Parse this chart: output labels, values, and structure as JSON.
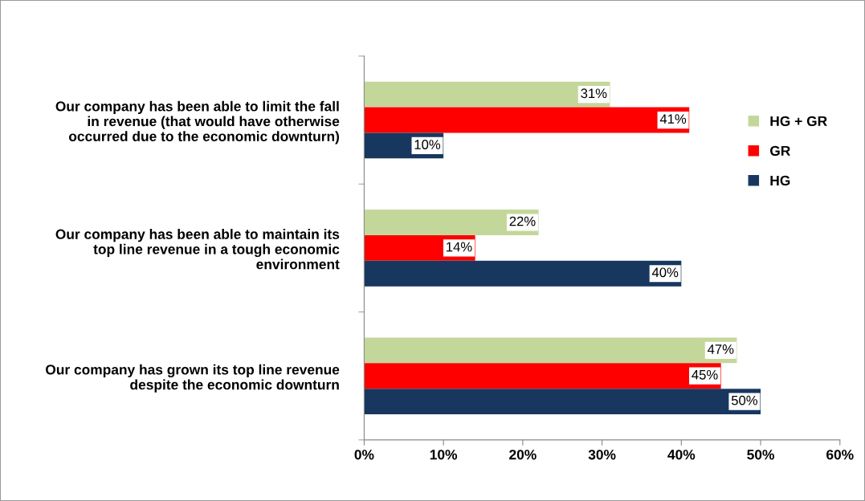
{
  "chart_data": {
    "type": "bar",
    "orientation": "horizontal",
    "categories": [
      "Our company has been able to limit the fall\nin revenue (that would have otherwise\noccurred due to the economic downturn)",
      "Our company has been able to maintain its\ntop line revenue in a tough economic\nenvironment",
      "Our company has grown its top line revenue\ndespite the economic downturn"
    ],
    "series": [
      {
        "name": "HG + GR",
        "color": "#c4d79b",
        "values": [
          31,
          22,
          47
        ],
        "value_labels": [
          "31%",
          "22%",
          "47%"
        ]
      },
      {
        "name": "GR",
        "color": "#ff0000",
        "values": [
          41,
          14,
          45
        ],
        "value_labels": [
          "41%",
          "14%",
          "45%"
        ]
      },
      {
        "name": "HG",
        "color": "#17375e",
        "values": [
          10,
          40,
          50
        ],
        "value_labels": [
          "10%",
          "40%",
          "50%"
        ]
      }
    ],
    "xlim": [
      0,
      60
    ],
    "xticks": [
      {
        "value": 0,
        "label": "0%"
      },
      {
        "value": 10,
        "label": "10%"
      },
      {
        "value": 20,
        "label": "20%"
      },
      {
        "value": 30,
        "label": "30%"
      },
      {
        "value": 40,
        "label": "40%"
      },
      {
        "value": 50,
        "label": "50%"
      },
      {
        "value": 60,
        "label": "60%"
      }
    ],
    "legend": "right",
    "grid": false
  }
}
